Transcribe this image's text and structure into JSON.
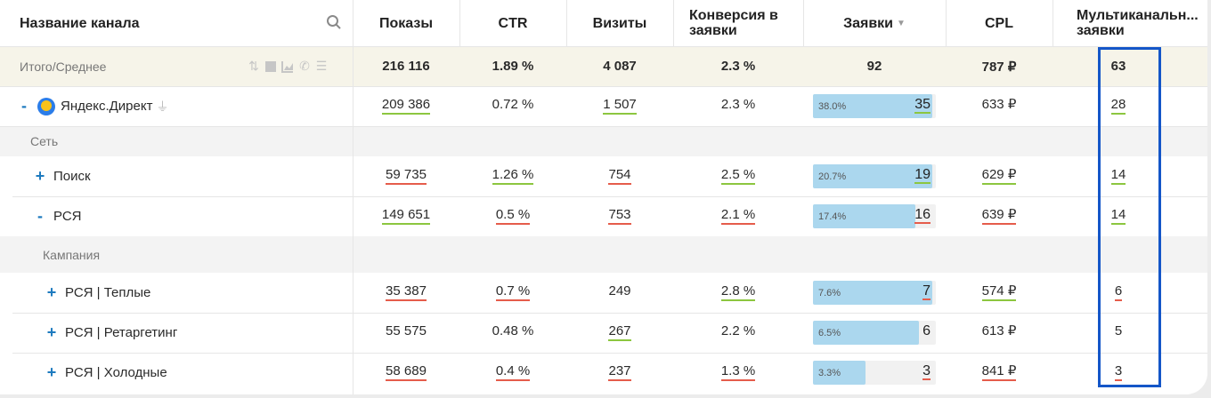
{
  "header": {
    "name": "Название канала",
    "impressions": "Показы",
    "ctr": "CTR",
    "visits": "Визиты",
    "conversion": "Конверсия в заявки",
    "leads": "Заявки",
    "cpl": "CPL",
    "multichannel": "Мультиканальн... заявки"
  },
  "total": {
    "name": "Итого/Среднее",
    "impressions": "216 116",
    "ctr": "1.89 %",
    "visits": "4 087",
    "conversion": "2.3 %",
    "leads": "92",
    "cpl": "787 ₽",
    "multichannel": "63"
  },
  "yandex": {
    "toggle": "-",
    "name": "Яндекс.Директ",
    "impressions": "209 386",
    "ctr": "0.72 %",
    "visits": "1 507",
    "conversion": "2.3 %",
    "leads_pct": "38.0%",
    "leads": "35",
    "leads_fill": 0.97,
    "cpl": "633 ₽",
    "multichannel": "28"
  },
  "group_network": "Сеть",
  "search": {
    "toggle": "+",
    "name": "Поиск",
    "impressions": "59 735",
    "ctr": "1.26 %",
    "visits": "754",
    "conversion": "2.5 %",
    "leads_pct": "20.7%",
    "leads": "19",
    "leads_fill": 0.97,
    "cpl": "629 ₽",
    "multichannel": "14"
  },
  "rsya": {
    "toggle": "-",
    "name": "РСЯ",
    "impressions": "149 651",
    "ctr": "0.5 %",
    "visits": "753",
    "conversion": "2.1 %",
    "leads_pct": "17.4%",
    "leads": "16",
    "leads_fill": 0.83,
    "cpl": "639 ₽",
    "multichannel": "14"
  },
  "group_campaign": "Кампания",
  "warm": {
    "toggle": "+",
    "name": "РСЯ | Теплые",
    "impressions": "35 387",
    "ctr": "0.7 %",
    "visits": "249",
    "conversion": "2.8 %",
    "leads_pct": "7.6%",
    "leads": "7",
    "leads_fill": 0.97,
    "cpl": "574 ₽",
    "multichannel": "6"
  },
  "retarget": {
    "toggle": "+",
    "name": "РСЯ | Ретаргетинг",
    "impressions": "55 575",
    "ctr": "0.48 %",
    "visits": "267",
    "conversion": "2.2 %",
    "leads_pct": "6.5%",
    "leads": "6",
    "leads_fill": 0.86,
    "cpl": "613 ₽",
    "multichannel": "5"
  },
  "cold": {
    "toggle": "+",
    "name": "РСЯ | Холодные",
    "impressions": "58 689",
    "ctr": "0.4 %",
    "visits": "237",
    "conversion": "1.3 %",
    "leads_pct": "3.3%",
    "leads": "3",
    "leads_fill": 0.43,
    "cpl": "841 ₽",
    "multichannel": "3"
  },
  "icons": [
    "sort-icon",
    "stop-icon",
    "chart-icon",
    "phone-icon",
    "list-icon",
    "search-icon",
    "plug-icon",
    "sort-down-icon"
  ],
  "colors": {
    "accent": "#1e7bbf",
    "bar": "#abd7ee",
    "highlight": "#1456c8",
    "good": "#8cc63f",
    "bad": "#e55c4b",
    "total_bg": "#f6f4e9"
  }
}
